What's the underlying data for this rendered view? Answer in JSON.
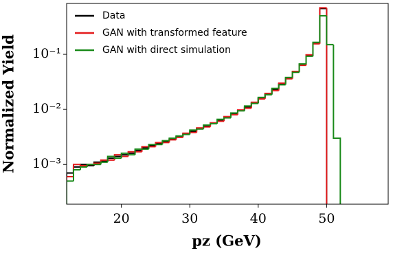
{
  "chart_data": {
    "type": "histogram",
    "xlabel": "pz (GeV)",
    "ylabel": "Normalized Yield",
    "log_y": true,
    "legend": "upper left",
    "xlim": [
      12,
      59
    ],
    "ylim": [
      0.00019,
      0.84
    ],
    "xticks": [
      20,
      30,
      40,
      50
    ],
    "yticks": [
      {
        "value": 0.001,
        "label": "10⁻³"
      },
      {
        "value": 0.01,
        "label": "10⁻²"
      },
      {
        "value": 0.1,
        "label": "10⁻¹"
      }
    ],
    "bins": [
      12,
      13,
      14,
      15,
      16,
      17,
      18,
      19,
      20,
      21,
      22,
      23,
      24,
      25,
      26,
      27,
      28,
      29,
      30,
      31,
      32,
      33,
      34,
      35,
      36,
      37,
      38,
      39,
      40,
      41,
      42,
      43,
      44,
      45,
      46,
      47,
      48,
      49,
      50,
      51,
      52
    ],
    "series": [
      {
        "name": "Data",
        "color": "#000000",
        "values": [
          0.0007,
          0.0009,
          0.001,
          0.00095,
          0.0011,
          0.00115,
          0.0013,
          0.0014,
          0.0015,
          0.0016,
          0.0018,
          0.002,
          0.0022,
          0.0024,
          0.0026,
          0.0029,
          0.0032,
          0.0036,
          0.004,
          0.0045,
          0.005,
          0.0056,
          0.0063,
          0.0072,
          0.0083,
          0.0096,
          0.011,
          0.013,
          0.016,
          0.019,
          0.023,
          0.029,
          0.037,
          0.048,
          0.065,
          0.095,
          0.16,
          0.68,
          0,
          0
        ]
      },
      {
        "name": "GAN with transformed feature",
        "color": "#e31a1c",
        "values": [
          0.0006,
          0.001,
          0.00095,
          0.001,
          0.00105,
          0.0012,
          0.0012,
          0.0015,
          0.0014,
          0.0017,
          0.0017,
          0.0021,
          0.0021,
          0.0025,
          0.0025,
          0.0028,
          0.0031,
          0.0037,
          0.0038,
          0.0046,
          0.0048,
          0.0057,
          0.0061,
          0.0074,
          0.008,
          0.0098,
          0.0105,
          0.0135,
          0.0155,
          0.0195,
          0.022,
          0.03,
          0.036,
          0.049,
          0.063,
          0.098,
          0.155,
          0.7,
          0,
          0
        ]
      },
      {
        "name": "GAN with direct simulation",
        "color": "#1a8a1a",
        "values": [
          0.0005,
          0.0008,
          0.0009,
          0.001,
          0.001,
          0.0011,
          0.0014,
          0.0013,
          0.0016,
          0.0015,
          0.0019,
          0.0019,
          0.0023,
          0.0023,
          0.0027,
          0.003,
          0.0033,
          0.0035,
          0.0042,
          0.0044,
          0.0052,
          0.0055,
          0.0066,
          0.007,
          0.0086,
          0.0094,
          0.0115,
          0.0128,
          0.0165,
          0.0185,
          0.024,
          0.028,
          0.038,
          0.047,
          0.067,
          0.092,
          0.165,
          0.5,
          0.15,
          0.003
        ]
      }
    ]
  }
}
